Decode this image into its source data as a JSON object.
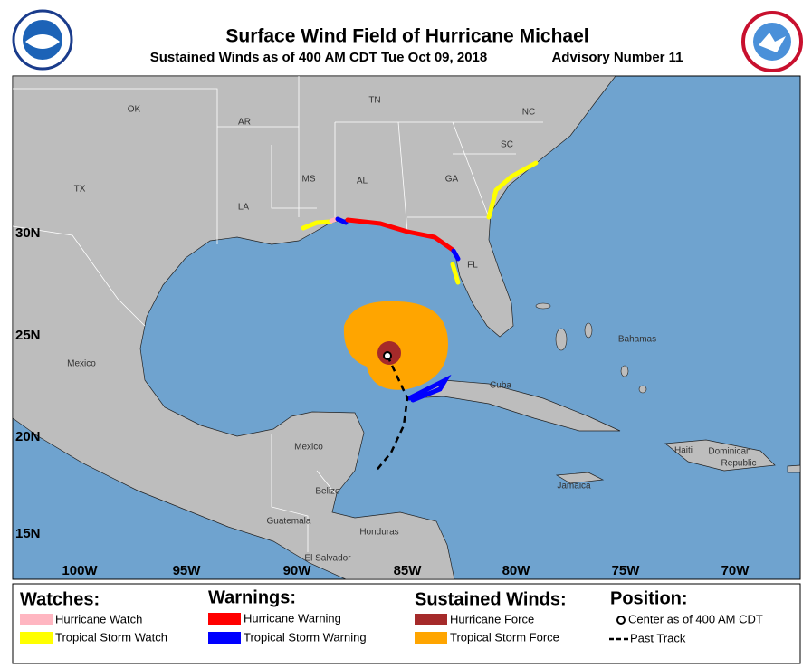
{
  "header": {
    "title": "Surface Wind Field of Hurricane Michael",
    "subtitle": "Sustained Winds as of 400 AM CDT Tue Oct 09, 2018",
    "advisory": "Advisory Number 11"
  },
  "map": {
    "labels": [
      "OK",
      "AR",
      "TN",
      "NC",
      "SC",
      "TX",
      "MS",
      "AL",
      "GA",
      "LA",
      "FL",
      "Mexico",
      "Mexico",
      "Bahamas",
      "Cuba",
      "Haiti",
      "Dominican",
      "Republic",
      "Jamaica",
      "Belize",
      "Guatemala",
      "Honduras",
      "El Salvador"
    ],
    "lat_labels": [
      "30N",
      "25N",
      "20N",
      "15N"
    ],
    "lon_labels": [
      "100W",
      "95W",
      "90W",
      "85W",
      "80W",
      "75W",
      "70W"
    ]
  },
  "legend": {
    "watches": {
      "title": "Watches:",
      "items": [
        "Hurricane Watch",
        "Tropical Storm Watch"
      ]
    },
    "warnings": {
      "title": "Warnings:",
      "items": [
        "Hurricane Warning",
        "Tropical Storm Warning"
      ]
    },
    "winds": {
      "title": "Sustained Winds:",
      "items": [
        "Hurricane Force",
        "Tropical Storm Force"
      ]
    },
    "position": {
      "title": "Position:",
      "items": [
        "Center as of 400 AM CDT",
        "Past Track"
      ]
    }
  }
}
